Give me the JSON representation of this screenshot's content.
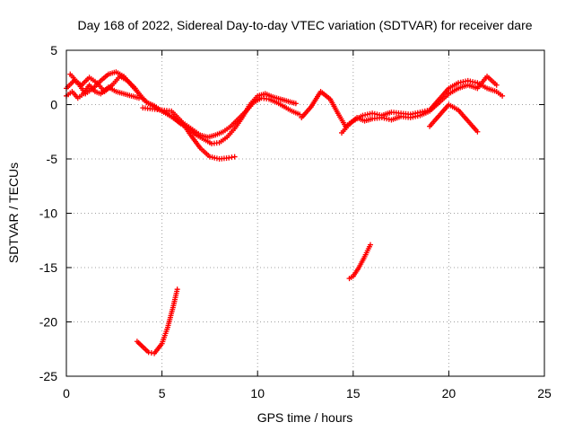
{
  "chart_data": {
    "type": "scatter",
    "title": "Day 168 of 2022, Sidereal Day-to-day VTEC variation (SDTVAR) for receiver dare",
    "xlabel": "GPS time / hours",
    "ylabel": "SDTVAR / TECUs",
    "xlim": [
      0,
      25
    ],
    "ylim": [
      -25,
      5
    ],
    "xticks": [
      0,
      5,
      10,
      15,
      20,
      25
    ],
    "yticks": [
      5,
      0,
      -5,
      -10,
      -15,
      -20,
      -25
    ],
    "grid": true,
    "marker": "+",
    "color": "#ff0000",
    "series": [
      {
        "name": "track-a",
        "x": [
          0.0,
          0.4,
          0.8,
          1.2,
          1.6,
          2.0,
          2.4,
          2.8,
          3.2,
          3.6,
          4.0,
          4.4,
          4.8,
          5.2,
          5.6,
          6.0,
          6.4,
          6.8,
          7.2,
          7.6,
          8.0,
          8.4,
          8.8,
          9.2,
          9.6,
          10.0,
          10.4,
          10.8,
          11.2,
          11.6,
          12.0
        ],
        "y": [
          1.5,
          2.2,
          1.8,
          2.5,
          2.0,
          1.2,
          1.8,
          2.6,
          2.2,
          1.5,
          0.5,
          0.0,
          -0.4,
          -0.8,
          -1.2,
          -1.8,
          -2.2,
          -2.8,
          -3.2,
          -3.6,
          -3.5,
          -3.0,
          -2.2,
          -1.2,
          0.0,
          0.8,
          1.0,
          0.7,
          0.5,
          0.3,
          0.1
        ]
      },
      {
        "name": "track-b",
        "x": [
          0.2,
          0.6,
          1.0,
          1.4,
          1.8,
          2.2,
          2.6,
          3.0,
          3.4,
          3.8,
          4.2,
          4.6,
          5.0,
          5.4,
          5.8,
          6.2,
          6.6,
          7.0,
          7.4,
          7.8,
          8.2,
          8.6,
          9.0,
          9.4,
          9.8,
          10.2,
          10.6,
          11.0,
          11.4,
          11.8,
          12.2
        ],
        "y": [
          2.8,
          2.0,
          1.0,
          1.5,
          2.2,
          2.8,
          3.0,
          2.6,
          1.8,
          1.0,
          0.2,
          -0.1,
          -0.6,
          -1.0,
          -1.5,
          -1.8,
          -2.3,
          -2.8,
          -3.0,
          -2.8,
          -2.5,
          -2.0,
          -1.3,
          -0.6,
          0.2,
          0.6,
          0.5,
          0.2,
          -0.2,
          -0.6,
          -0.9
        ]
      },
      {
        "name": "track-c",
        "x": [
          0.0,
          0.3,
          0.6,
          0.9,
          1.2,
          1.5,
          1.8,
          2.2,
          2.6,
          3.0,
          3.4,
          3.8
        ],
        "y": [
          0.8,
          1.2,
          0.6,
          1.0,
          1.8,
          1.2,
          1.0,
          1.6,
          1.2,
          1.0,
          0.8,
          0.6
        ]
      },
      {
        "name": "track-d",
        "x": [
          4.0,
          4.5,
          5.0,
          5.5,
          6.0,
          6.5,
          7.0,
          7.5,
          8.0,
          8.5,
          8.8
        ],
        "y": [
          -0.3,
          -0.4,
          -0.5,
          -0.6,
          -1.5,
          -2.8,
          -4.0,
          -4.8,
          -5.0,
          -4.9,
          -4.8
        ]
      },
      {
        "name": "track-e",
        "x": [
          12.3,
          12.8,
          13.3,
          13.8,
          14.2,
          14.6,
          15.0,
          15.5,
          16.0,
          16.5,
          17.0,
          17.5,
          18.0,
          18.5,
          19.0,
          19.5,
          20.0,
          20.5,
          21.0,
          21.5,
          22.0,
          22.5,
          22.8
        ],
        "y": [
          -1.2,
          -0.2,
          1.2,
          0.5,
          -0.8,
          -2.0,
          -1.5,
          -1.0,
          -0.8,
          -1.0,
          -0.7,
          -0.8,
          -0.9,
          -0.7,
          -0.5,
          0.5,
          1.5,
          2.0,
          2.2,
          2.0,
          1.5,
          1.2,
          0.8
        ]
      },
      {
        "name": "track-f",
        "x": [
          14.4,
          14.8,
          15.2,
          15.6,
          16.0,
          16.5,
          17.0,
          17.5,
          18.0,
          18.5,
          19.0,
          19.5,
          20.0,
          20.5,
          21.0,
          21.5,
          22.0,
          22.5
        ],
        "y": [
          -2.6,
          -1.8,
          -1.2,
          -1.5,
          -1.3,
          -1.2,
          -1.4,
          -1.1,
          -1.2,
          -1.0,
          -0.6,
          0.2,
          1.0,
          1.5,
          1.8,
          1.5,
          2.6,
          1.8
        ]
      },
      {
        "name": "track-g",
        "x": [
          19.0,
          19.5,
          20.0,
          20.5,
          21.0,
          21.5
        ],
        "y": [
          -2.0,
          -1.0,
          0.0,
          -0.5,
          -1.5,
          -2.5
        ]
      },
      {
        "name": "track-h",
        "x": [
          3.7,
          4.0,
          4.3,
          4.6,
          5.0,
          5.3,
          5.6,
          5.8
        ],
        "y": [
          -21.8,
          -22.3,
          -22.8,
          -22.9,
          -22.0,
          -20.5,
          -18.5,
          -17.0
        ]
      },
      {
        "name": "track-i",
        "x": [
          14.8,
          15.0,
          15.3,
          15.6,
          15.9
        ],
        "y": [
          -16.0,
          -15.8,
          -15.0,
          -14.0,
          -12.9
        ]
      }
    ]
  }
}
